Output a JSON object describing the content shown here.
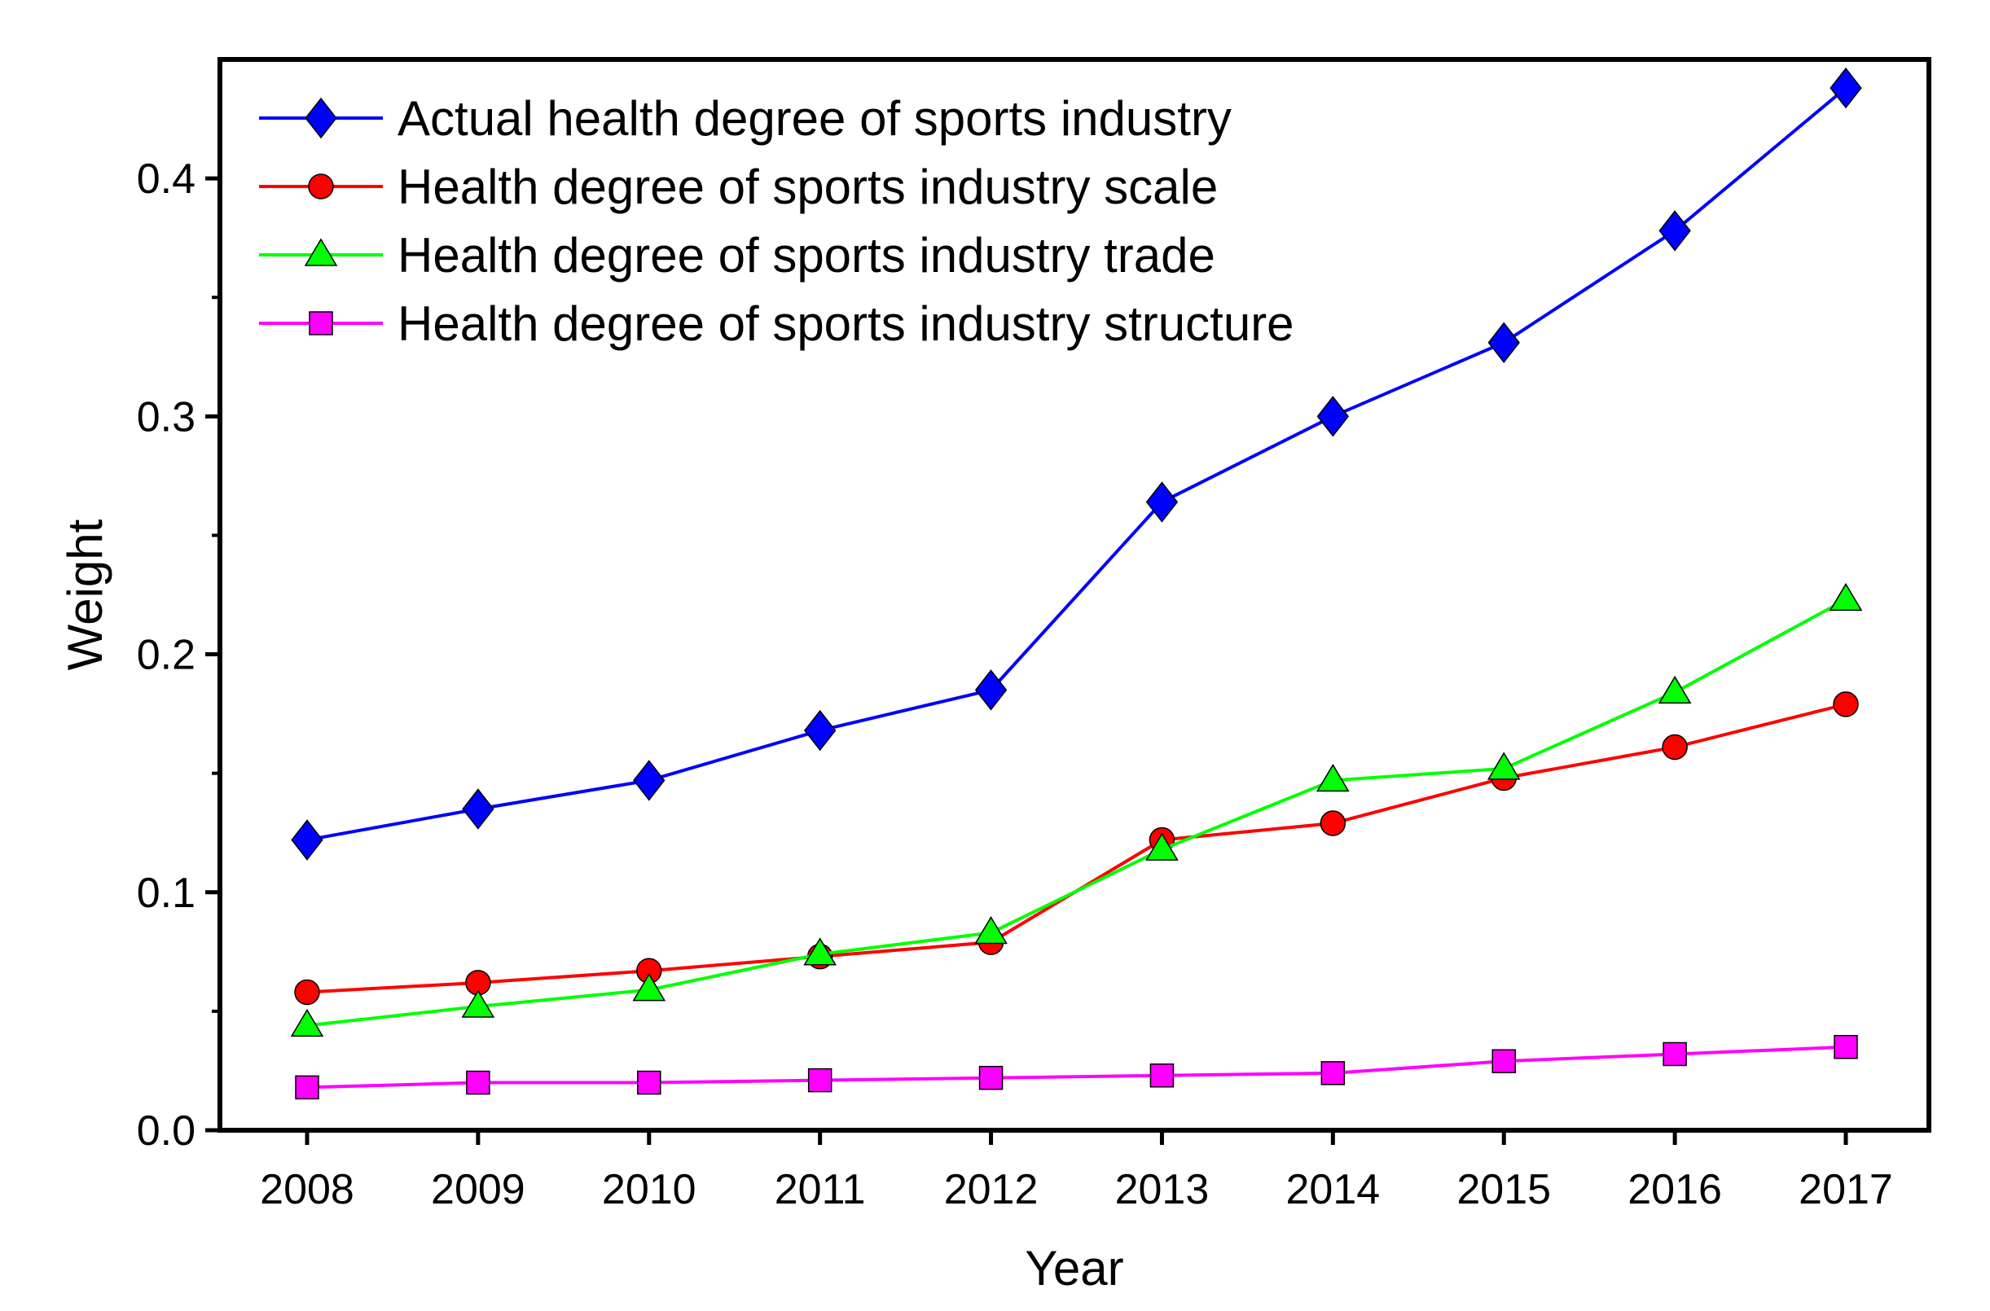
{
  "chart_data": {
    "type": "line",
    "title": "",
    "xlabel": "Year",
    "ylabel": "Weight",
    "categories": [
      "2008",
      "2009",
      "2010",
      "2011",
      "2012",
      "2013",
      "2014",
      "2015",
      "2016",
      "2017"
    ],
    "ylim": [
      0.0,
      0.45
    ],
    "yticks": [
      "0.0",
      "0.1",
      "0.2",
      "0.3",
      "0.4"
    ],
    "ytick_values": [
      0.0,
      0.1,
      0.2,
      0.3,
      0.4
    ],
    "grid": false,
    "legend_position": "top-left",
    "series": [
      {
        "name": "Actual health degree of sports industry",
        "color": "#0000ff",
        "marker": "diamond",
        "values": [
          0.122,
          0.135,
          0.147,
          0.168,
          0.185,
          0.264,
          0.3,
          0.331,
          0.378,
          0.438
        ]
      },
      {
        "name": "Health degree of sports industry scale",
        "color": "#ff0000",
        "marker": "circle",
        "values": [
          0.058,
          0.062,
          0.067,
          0.073,
          0.079,
          0.122,
          0.129,
          0.148,
          0.161,
          0.179
        ]
      },
      {
        "name": "Health degree of sports industry trade",
        "color": "#00ff00",
        "marker": "triangle",
        "values": [
          0.044,
          0.052,
          0.059,
          0.074,
          0.083,
          0.118,
          0.147,
          0.152,
          0.184,
          0.223
        ]
      },
      {
        "name": "Health degree of sports industry structure",
        "color": "#ff00ff",
        "marker": "square",
        "values": [
          0.018,
          0.02,
          0.02,
          0.021,
          0.022,
          0.023,
          0.024,
          0.029,
          0.032,
          0.035
        ]
      }
    ]
  }
}
